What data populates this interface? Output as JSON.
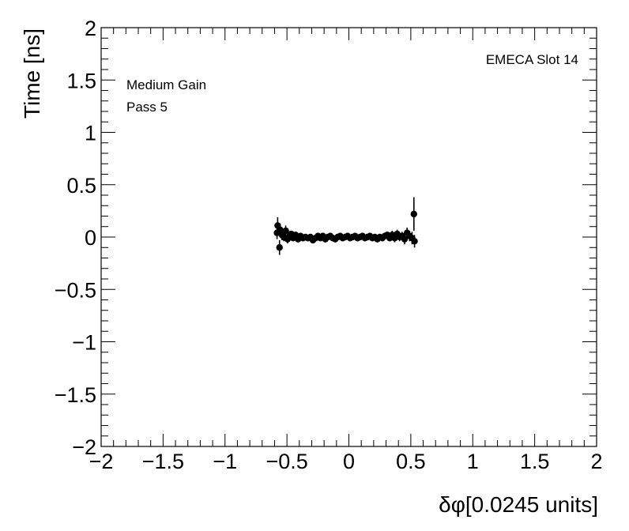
{
  "chart_data": {
    "type": "scatter",
    "xlabel": "δφ[0.0245 units]",
    "ylabel": "Time [ns]",
    "xlim": [
      -2,
      2
    ],
    "ylim": [
      -2,
      2
    ],
    "x_ticks": [
      -2,
      -1.5,
      -1,
      -0.5,
      0,
      0.5,
      1,
      1.5,
      2
    ],
    "y_ticks": [
      -2,
      -1.5,
      -1,
      -0.5,
      0,
      0.5,
      1,
      1.5,
      2
    ],
    "x_tick_labels": [
      "−2",
      "−1.5",
      "−1",
      "−0.5",
      "0",
      "0.5",
      "1",
      "1.5",
      "2"
    ],
    "y_tick_labels": [
      "−2",
      "−1.5",
      "−1",
      "−0.5",
      "0",
      "0.5",
      "1",
      "1.5",
      "2"
    ],
    "annotations": {
      "top_right": "EMECA Slot 14",
      "top_left_line1": "Medium Gain",
      "top_left_line2": "Pass 5"
    },
    "grid": false,
    "marker_color": "#000000",
    "series": [
      {
        "points": [
          {
            "x": -0.58,
            "y": 0.04,
            "err": 0.06
          },
          {
            "x": -0.575,
            "y": 0.11,
            "err": 0.08
          },
          {
            "x": -0.56,
            "y": -0.1,
            "err": 0.07
          },
          {
            "x": -0.555,
            "y": 0.07,
            "err": 0.06
          },
          {
            "x": -0.54,
            "y": 0.02,
            "err": 0.05
          },
          {
            "x": -0.525,
            "y": 0.0,
            "err": 0.04
          },
          {
            "x": -0.51,
            "y": 0.06,
            "err": 0.05
          },
          {
            "x": -0.495,
            "y": -0.02,
            "err": 0.04
          },
          {
            "x": -0.48,
            "y": 0.01,
            "err": 0.03
          },
          {
            "x": -0.465,
            "y": 0.03,
            "err": 0.03
          },
          {
            "x": -0.45,
            "y": -0.01,
            "err": 0.03
          },
          {
            "x": -0.43,
            "y": 0.02,
            "err": 0.03
          },
          {
            "x": -0.41,
            "y": -0.02,
            "err": 0.03
          },
          {
            "x": -0.39,
            "y": 0.01,
            "err": 0.03
          },
          {
            "x": -0.37,
            "y": -0.01,
            "err": 0.03
          },
          {
            "x": -0.35,
            "y": 0.0,
            "err": 0.03
          },
          {
            "x": -0.33,
            "y": -0.01,
            "err": 0.03
          },
          {
            "x": -0.31,
            "y": 0.0,
            "err": 0.03
          },
          {
            "x": -0.29,
            "y": -0.03,
            "err": 0.03
          },
          {
            "x": -0.27,
            "y": -0.01,
            "err": 0.03
          },
          {
            "x": -0.25,
            "y": 0.01,
            "err": 0.03
          },
          {
            "x": -0.23,
            "y": -0.01,
            "err": 0.03
          },
          {
            "x": -0.21,
            "y": 0.01,
            "err": 0.03
          },
          {
            "x": -0.19,
            "y": -0.02,
            "err": 0.03
          },
          {
            "x": -0.17,
            "y": 0.0,
            "err": 0.03
          },
          {
            "x": -0.15,
            "y": 0.01,
            "err": 0.03
          },
          {
            "x": -0.13,
            "y": -0.01,
            "err": 0.03
          },
          {
            "x": -0.11,
            "y": -0.02,
            "err": 0.03
          },
          {
            "x": -0.09,
            "y": 0.0,
            "err": 0.03
          },
          {
            "x": -0.07,
            "y": 0.01,
            "err": 0.03
          },
          {
            "x": -0.05,
            "y": -0.01,
            "err": 0.03
          },
          {
            "x": -0.03,
            "y": 0.0,
            "err": 0.03
          },
          {
            "x": -0.01,
            "y": 0.01,
            "err": 0.03
          },
          {
            "x": 0.01,
            "y": -0.01,
            "err": 0.03
          },
          {
            "x": 0.03,
            "y": 0.0,
            "err": 0.03
          },
          {
            "x": 0.05,
            "y": 0.01,
            "err": 0.03
          },
          {
            "x": 0.07,
            "y": -0.01,
            "err": 0.03
          },
          {
            "x": 0.09,
            "y": 0.0,
            "err": 0.03
          },
          {
            "x": 0.11,
            "y": 0.01,
            "err": 0.03
          },
          {
            "x": 0.13,
            "y": -0.01,
            "err": 0.03
          },
          {
            "x": 0.15,
            "y": 0.0,
            "err": 0.03
          },
          {
            "x": 0.17,
            "y": 0.01,
            "err": 0.03
          },
          {
            "x": 0.19,
            "y": -0.01,
            "err": 0.03
          },
          {
            "x": 0.21,
            "y": 0.0,
            "err": 0.03
          },
          {
            "x": 0.23,
            "y": -0.02,
            "err": 0.03
          },
          {
            "x": 0.25,
            "y": 0.0,
            "err": 0.03
          },
          {
            "x": 0.27,
            "y": -0.01,
            "err": 0.03
          },
          {
            "x": 0.29,
            "y": 0.01,
            "err": 0.03
          },
          {
            "x": 0.31,
            "y": 0.02,
            "err": 0.03
          },
          {
            "x": 0.33,
            "y": -0.01,
            "err": 0.03
          },
          {
            "x": 0.35,
            "y": 0.02,
            "err": 0.04
          },
          {
            "x": 0.37,
            "y": -0.01,
            "err": 0.04
          },
          {
            "x": 0.39,
            "y": 0.03,
            "err": 0.04
          },
          {
            "x": 0.41,
            "y": 0.0,
            "err": 0.04
          },
          {
            "x": 0.43,
            "y": 0.01,
            "err": 0.04
          },
          {
            "x": 0.45,
            "y": -0.02,
            "err": 0.05
          },
          {
            "x": 0.47,
            "y": 0.04,
            "err": 0.05
          },
          {
            "x": 0.49,
            "y": 0.01,
            "err": 0.05
          },
          {
            "x": 0.51,
            "y": -0.01,
            "err": 0.06
          },
          {
            "x": 0.525,
            "y": 0.22,
            "err": 0.16
          },
          {
            "x": 0.53,
            "y": -0.04,
            "err": 0.06
          }
        ]
      }
    ]
  }
}
